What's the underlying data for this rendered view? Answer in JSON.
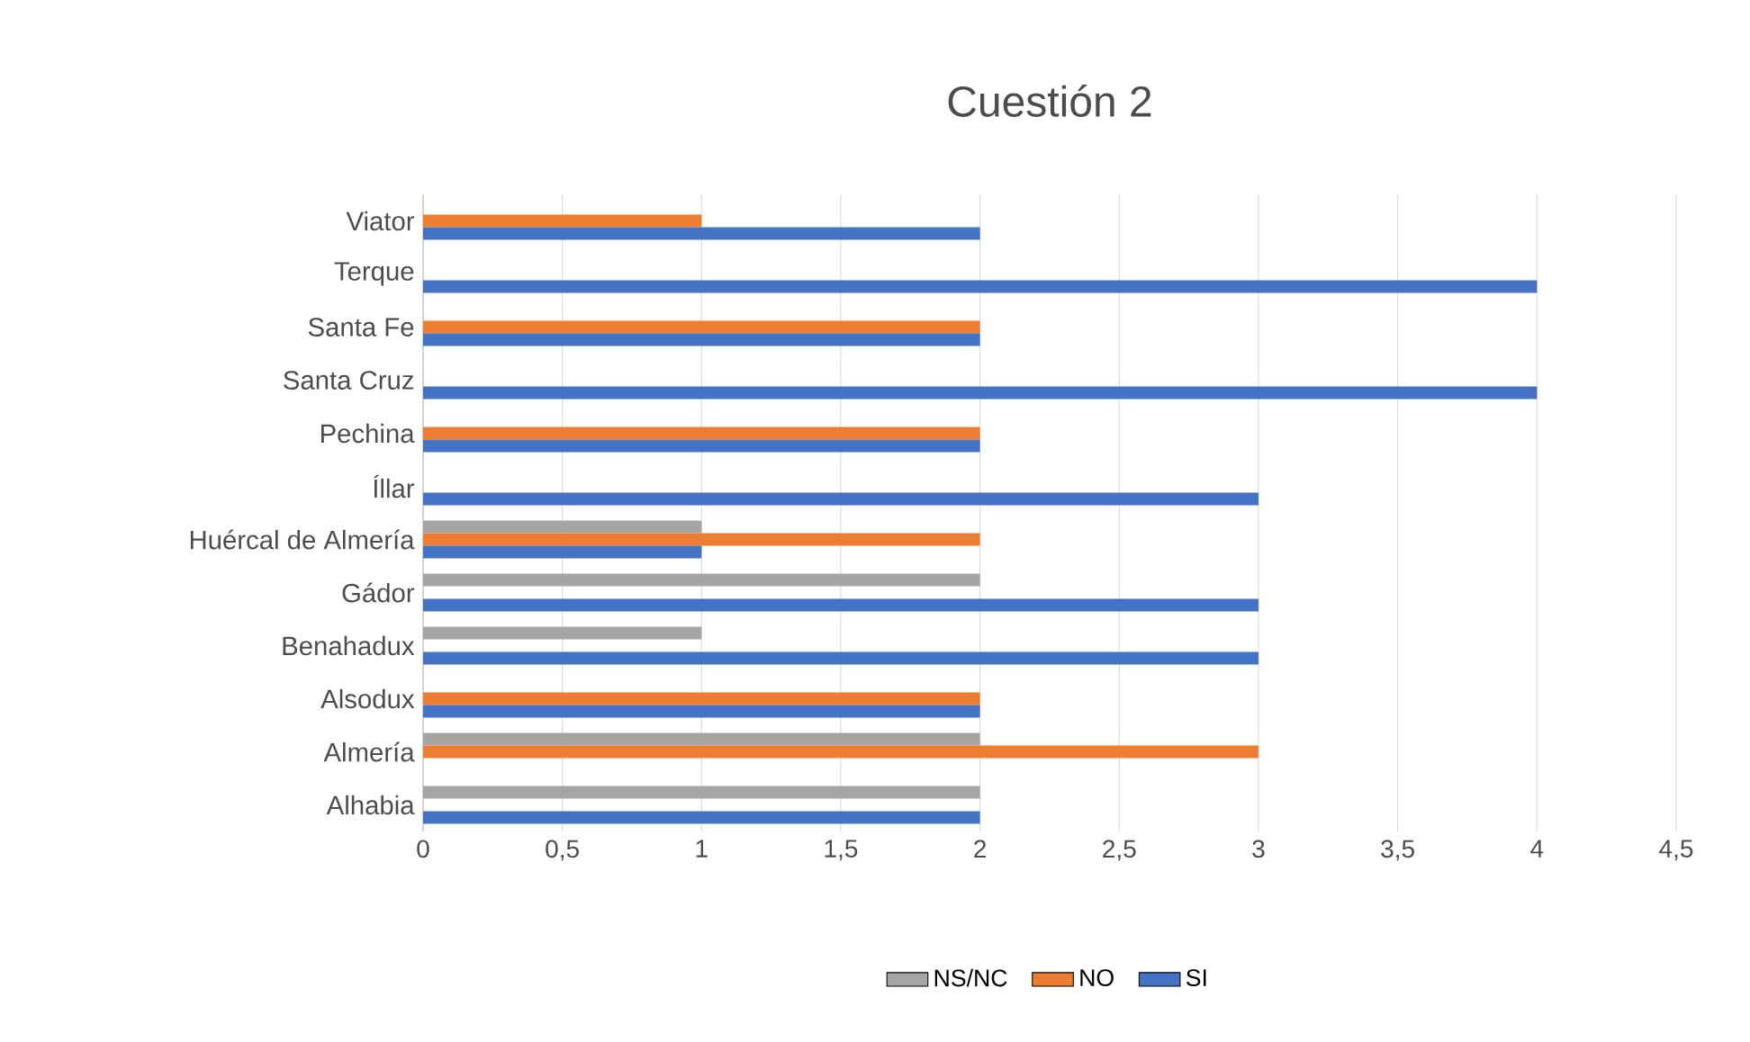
{
  "chart_data": {
    "type": "bar",
    "orientation": "horizontal",
    "title": "Cuestión 2",
    "categories": [
      "Viator",
      "Terque",
      "Santa Fe",
      "Santa Cruz",
      "Pechina",
      "Íllar",
      "Huércal de Almería",
      "Gádor",
      "Benahadux",
      "Alsodux",
      "Almería",
      "Alhabia"
    ],
    "series": [
      {
        "name": "NS/NC",
        "color": "#a5a5a5",
        "values": [
          null,
          null,
          null,
          null,
          null,
          null,
          1,
          2,
          1,
          null,
          2,
          2
        ]
      },
      {
        "name": "NO",
        "color": "#ed7d31",
        "values": [
          1,
          null,
          2,
          null,
          2,
          null,
          2,
          null,
          null,
          2,
          3,
          null
        ]
      },
      {
        "name": "SI",
        "color": "#4472c4",
        "values": [
          2,
          4,
          2,
          4,
          2,
          3,
          1,
          3,
          3,
          2,
          null,
          2
        ]
      }
    ],
    "xlim": [
      0,
      4.5
    ],
    "xticks": [
      0,
      {
        "value": 0.5,
        "label": "0,5"
      },
      1,
      {
        "value": 1.5,
        "label": "1,5"
      },
      2,
      {
        "value": 2.5,
        "label": "2,5"
      },
      3,
      {
        "value": 3.5,
        "label": "3,5"
      },
      4,
      {
        "value": 4.5,
        "label": "4,5"
      }
    ],
    "grid": "x",
    "legend": "bottom"
  }
}
